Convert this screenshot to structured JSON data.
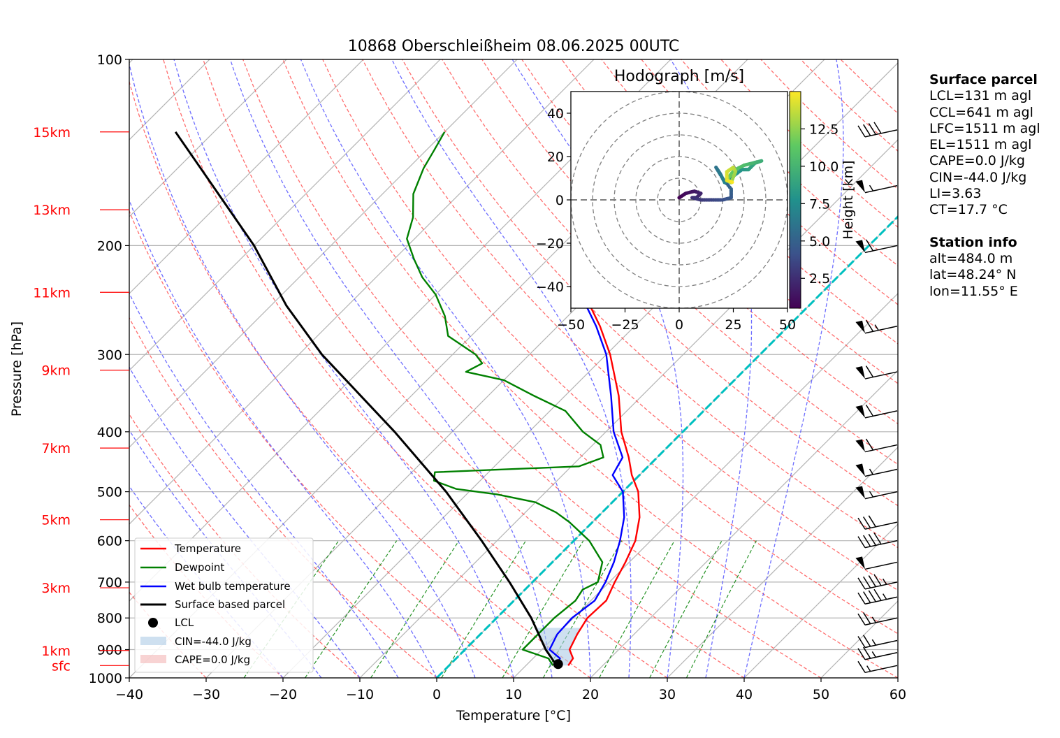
{
  "chart_data": [
    {
      "type": "line",
      "title": "10868 Oberschleißheim 08.06.2025 00UTC",
      "xlabel": "Temperature [°C]",
      "ylabel": "Pressure [hPa]",
      "xlim": [
        -40,
        60
      ],
      "ylim": [
        1000,
        100
      ],
      "y_scale": "log",
      "x_ticks": [
        "−40",
        "−30",
        "−20",
        "−10",
        "0",
        "10",
        "20",
        "30",
        "40",
        "50",
        "60"
      ],
      "y_ticks": [
        {
          "p": 100,
          "label": "100"
        },
        {
          "p": 200,
          "label": "200"
        },
        {
          "p": 300,
          "label": "300"
        },
        {
          "p": 400,
          "label": "400"
        },
        {
          "p": 500,
          "label": "500"
        },
        {
          "p": 600,
          "label": "600"
        },
        {
          "p": 700,
          "label": "700"
        },
        {
          "p": 800,
          "label": "800"
        },
        {
          "p": 900,
          "label": "900"
        },
        {
          "p": 1000,
          "label": "1000"
        }
      ],
      "height_labels": [
        {
          "p": 955,
          "label": "sfc"
        },
        {
          "p": 903,
          "label": "1km"
        },
        {
          "p": 715,
          "label": "3km"
        },
        {
          "p": 555,
          "label": "5km"
        },
        {
          "p": 425,
          "label": "7km"
        },
        {
          "p": 318,
          "label": "9km"
        },
        {
          "p": 238,
          "label": "11km"
        },
        {
          "p": 175,
          "label": "13km"
        },
        {
          "p": 131,
          "label": "15km"
        }
      ],
      "grid": true,
      "legend_position": "lower-left",
      "legend": [
        "Temperature",
        "Dewpoint",
        "Wet bulb temperature",
        "Surface based parcel",
        "LCL",
        "CIN=-44.0 J/kg",
        "CAPE=0.0 J/kg"
      ],
      "series": [
        {
          "name": "Temperature",
          "color": "#ff0000",
          "points": [
            [
              955,
              15.5
            ],
            [
              930,
              15.2
            ],
            [
              900,
              13.6
            ],
            [
              850,
              12.6
            ],
            [
              800,
              11.8
            ],
            [
              750,
              12.0
            ],
            [
              700,
              10.7
            ],
            [
              650,
              9.5
            ],
            [
              600,
              8.0
            ],
            [
              550,
              5.5
            ],
            [
              500,
              2.0
            ],
            [
              470,
              -1.0
            ],
            [
              440,
              -3.7
            ],
            [
              400,
              -8.0
            ],
            [
              350,
              -13.0
            ],
            [
              300,
              -19.5
            ],
            [
              270,
              -24.5
            ],
            [
              250,
              -28.5
            ],
            [
              230,
              -33.0
            ],
            [
              210,
              -35.5
            ],
            [
              200,
              -37.5
            ],
            [
              180,
              -40.0
            ],
            [
              160,
              -44.0
            ],
            [
              150,
              -46.0
            ],
            [
              140,
              -48.5
            ],
            [
              133,
              -50.5
            ],
            [
              130,
              -51.5
            ]
          ]
        },
        {
          "name": "Dewpoint",
          "color": "#008000",
          "points": [
            [
              955,
              13.5
            ],
            [
              930,
              12.0
            ],
            [
              900,
              7.5
            ],
            [
              850,
              7.5
            ],
            [
              800,
              7.5
            ],
            [
              750,
              8.0
            ],
            [
              720,
              7.5
            ],
            [
              700,
              8.5
            ],
            [
              650,
              6.5
            ],
            [
              600,
              2.0
            ],
            [
              560,
              -3.0
            ],
            [
              540,
              -6.0
            ],
            [
              520,
              -10.0
            ],
            [
              505,
              -16.0
            ],
            [
              495,
              -22.0
            ],
            [
              480,
              -26.0
            ],
            [
              465,
              -27.0
            ],
            [
              455,
              -9.0
            ],
            [
              440,
              -7.0
            ],
            [
              420,
              -9.0
            ],
            [
              400,
              -13.0
            ],
            [
              370,
              -18.0
            ],
            [
              350,
              -24.0
            ],
            [
              330,
              -30.0
            ],
            [
              320,
              -36.0
            ],
            [
              310,
              -35.0
            ],
            [
              300,
              -37.0
            ],
            [
              280,
              -43.0
            ],
            [
              260,
              -46.0
            ],
            [
              240,
              -50.0
            ],
            [
              225,
              -54.0
            ],
            [
              210,
              -57.5
            ],
            [
              195,
              -61.0
            ],
            [
              180,
              -63.0
            ],
            [
              165,
              -66.0
            ],
            [
              150,
              -68.0
            ],
            [
              140,
              -69.0
            ],
            [
              131,
              -70.0
            ]
          ]
        },
        {
          "name": "Wet bulb temperature",
          "color": "#0000ff",
          "points": [
            [
              955,
              14.0
            ],
            [
              930,
              13.5
            ],
            [
              900,
              11.0
            ],
            [
              850,
              10.0
            ],
            [
              800,
              9.8
            ],
            [
              750,
              10.5
            ],
            [
              700,
              9.5
            ],
            [
              650,
              8.0
            ],
            [
              600,
              6.0
            ],
            [
              550,
              3.5
            ],
            [
              500,
              0.0
            ],
            [
              470,
              -3.5
            ],
            [
              440,
              -4.5
            ],
            [
              400,
              -9.0
            ],
            [
              350,
              -14.0
            ],
            [
              300,
              -20.0
            ],
            [
              270,
              -25.0
            ],
            [
              250,
              -29.0
            ],
            [
              230,
              -33.5
            ],
            [
              210,
              -36.0
            ],
            [
              200,
              -38.0
            ],
            [
              180,
              -40.5
            ],
            [
              160,
              -44.5
            ],
            [
              150,
              -46.5
            ],
            [
              140,
              -49.0
            ],
            [
              133,
              -51.0
            ],
            [
              130,
              -52.0
            ]
          ]
        },
        {
          "name": "Surface based parcel",
          "color": "#000000",
          "points": [
            [
              955,
              14.0
            ],
            [
              900,
              10.5
            ],
            [
              800,
              4.5
            ],
            [
              700,
              -3.0
            ],
            [
              600,
              -12.0
            ],
            [
              500,
              -23.0
            ],
            [
              400,
              -37.5
            ],
            [
              300,
              -57.0
            ],
            [
              250,
              -68.0
            ],
            [
              200,
              -80.0
            ],
            [
              150,
              -97.0
            ],
            [
              131,
              -105.0
            ]
          ]
        }
      ],
      "lcl": {
        "p": 950,
        "t": 14.0
      },
      "wind_barbs_kt": [
        [
          955,
          15
        ],
        [
          910,
          25
        ],
        [
          870,
          25
        ],
        [
          800,
          25
        ],
        [
          740,
          45
        ],
        [
          700,
          45
        ],
        [
          650,
          50
        ],
        [
          600,
          40
        ],
        [
          560,
          30
        ],
        [
          500,
          55
        ],
        [
          460,
          55
        ],
        [
          420,
          60
        ],
        [
          370,
          60
        ],
        [
          320,
          60
        ],
        [
          270,
          65
        ],
        [
          200,
          60
        ],
        [
          160,
          55
        ],
        [
          130,
          40
        ]
      ]
    },
    {
      "type": "scatter",
      "title": "Hodograph [m/s]",
      "xlim": [
        -50,
        50
      ],
      "ylim": [
        -50,
        50
      ],
      "x_ticks": [
        "−50",
        "−25",
        "0",
        "25",
        "50"
      ],
      "y_ticks": [
        "−40",
        "−20",
        "0",
        "20",
        "40"
      ],
      "colorbar": {
        "label": "Height [km]",
        "ticks": [
          "2.5",
          "5.0",
          "7.5",
          "10.0",
          "12.5"
        ],
        "range": [
          0.5,
          15
        ]
      },
      "points": [
        [
          0,
          1,
          0.5
        ],
        [
          3,
          3,
          1.0
        ],
        [
          7,
          4,
          1.5
        ],
        [
          10,
          3,
          2.0
        ],
        [
          8,
          1,
          2.3
        ],
        [
          6,
          1,
          2.6
        ],
        [
          10,
          0,
          3.0
        ],
        [
          15,
          0,
          3.5
        ],
        [
          20,
          0,
          4.0
        ],
        [
          24,
          1,
          4.5
        ],
        [
          24,
          5,
          5.0
        ],
        [
          20,
          10,
          5.5
        ],
        [
          17,
          15,
          6.0
        ],
        [
          19,
          12,
          6.5
        ],
        [
          21,
          8,
          7.0
        ],
        [
          25,
          11,
          7.5
        ],
        [
          29,
          14,
          8.0
        ],
        [
          32,
          14,
          8.5
        ],
        [
          35,
          17,
          9.0
        ],
        [
          38,
          18,
          9.5
        ],
        [
          34,
          17,
          10.0
        ],
        [
          30,
          16,
          10.5
        ],
        [
          26,
          14,
          11.0
        ],
        [
          24,
          12,
          11.5
        ],
        [
          22,
          9,
          12.0
        ],
        [
          24,
          8,
          12.5
        ],
        [
          26,
          13,
          13.0
        ],
        [
          25,
          15,
          13.5
        ],
        [
          22,
          13,
          14.0
        ],
        [
          22,
          9,
          14.5
        ],
        [
          25,
          8,
          15.0
        ]
      ]
    }
  ],
  "surface_parcel": {
    "heading": "Surface parcel",
    "lines": [
      "LCL=131 m agl",
      "CCL=641 m agl",
      "LFC=1511 m agl",
      "EL=1511 m agl",
      "CAPE=0.0 J/kg",
      "CIN=-44.0 J/kg",
      "LI=3.63",
      "CT=17.7 °C"
    ]
  },
  "station_info": {
    "heading": "Station info",
    "lines": [
      "alt=484.0 m",
      "lat=48.24° N",
      "lon=11.55° E"
    ]
  },
  "colors": {
    "temperature": "#ff0000",
    "dewpoint": "#008000",
    "wetbulb": "#0000ff",
    "parcel": "#000000",
    "dry_adiabat": "#ff5555",
    "moist_adiabat": "#5555ff",
    "mixing_ratio": "#008000",
    "zero_isotherm": "#00c0c0",
    "cin": "#aecbe6",
    "cape": "#f4b6b6"
  }
}
